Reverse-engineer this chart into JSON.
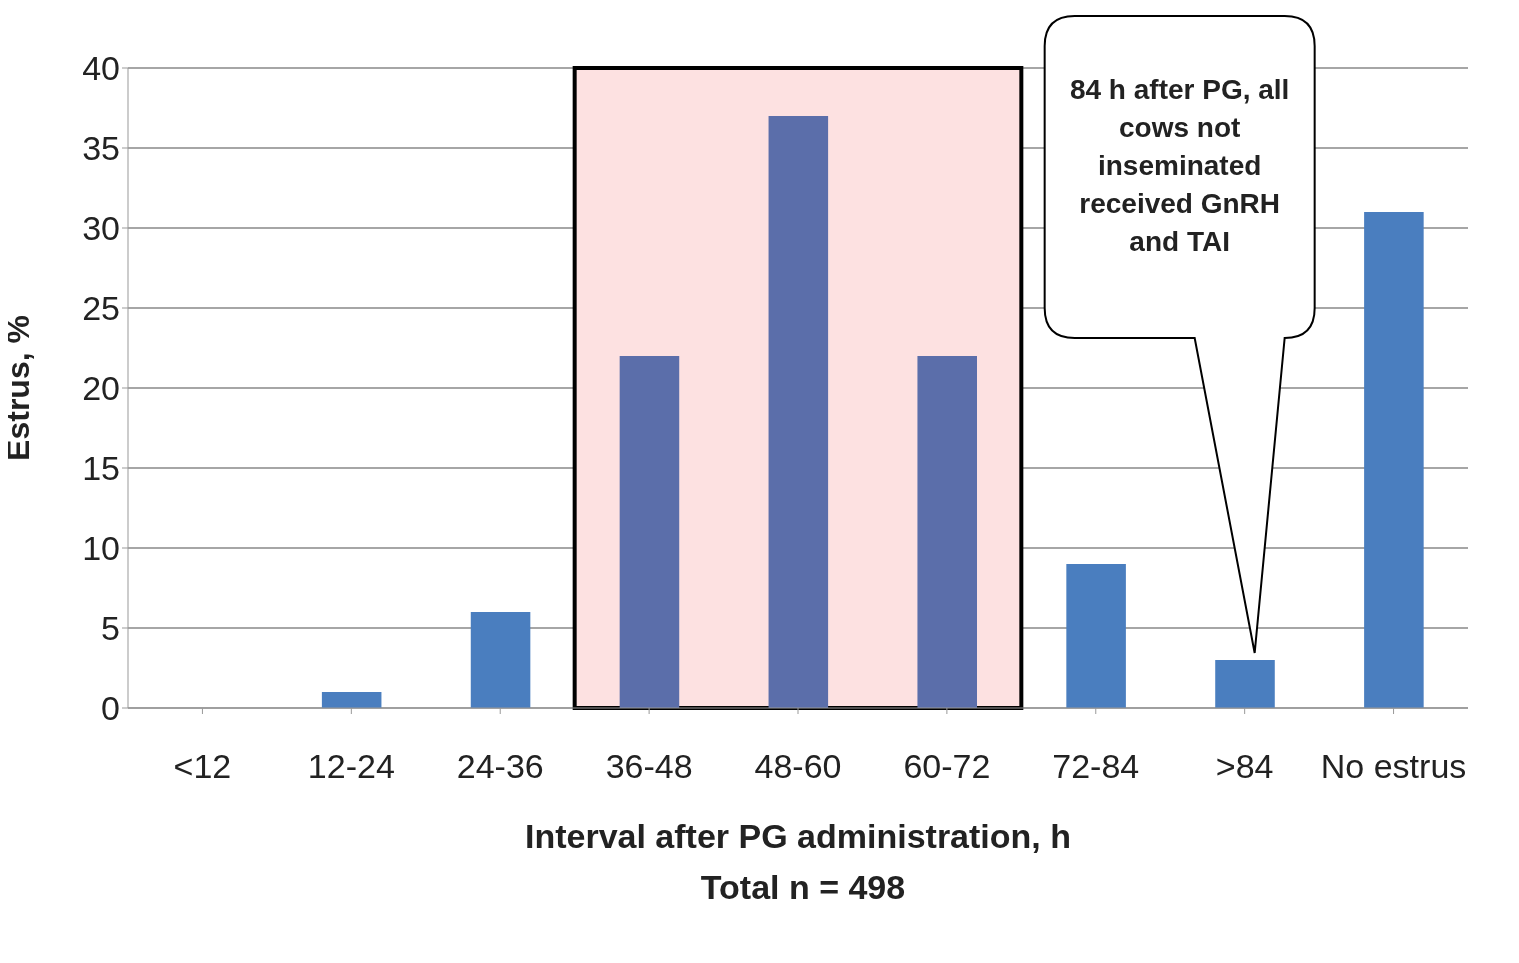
{
  "chart_data": {
    "type": "bar",
    "xlabel": "Interval after PG administration, h",
    "ylabel": "Estrus, %",
    "categories": [
      "<12",
      "12-24",
      "24-36",
      "36-48",
      "48-60",
      "60-72",
      "72-84",
      ">84",
      "No estrus"
    ],
    "values": [
      0,
      1,
      6,
      22,
      37,
      22,
      9,
      3,
      31
    ],
    "colors": [
      "#4a7ebf",
      "#4a7ebf",
      "#4a7ebf",
      "#5b6eaa",
      "#5b6eaa",
      "#5b6eaa",
      "#4a7ebf",
      "#4a7ebf",
      "#4a7ebf"
    ],
    "ylim": [
      0,
      40
    ],
    "yticks": [
      0,
      5,
      10,
      15,
      20,
      25,
      30,
      35,
      40
    ],
    "grid": "y",
    "bands": [
      {
        "axis": "x",
        "from": "36-48",
        "to": "60-72",
        "color": "#fde1e1"
      }
    ],
    "annotations": [
      "84 h after PG, all cows not inseminated received GnRH and TAI",
      "Total n = 498"
    ]
  }
}
